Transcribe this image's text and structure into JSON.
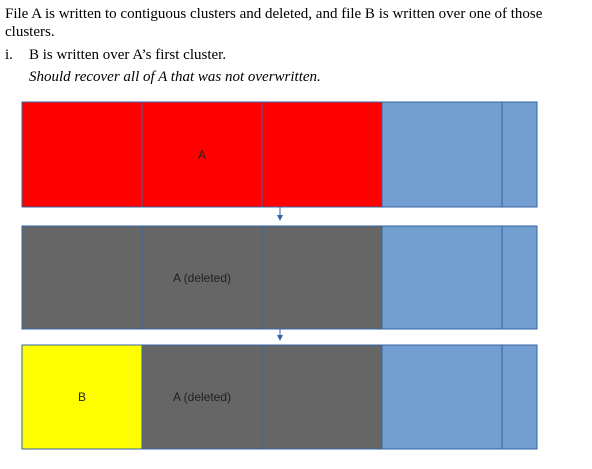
{
  "intro_text": "File A is written to contiguous clusters and deleted, and file B is written over one of those clusters.",
  "item": {
    "number": "i.",
    "text": "B is written over A’s first cluster."
  },
  "note_text": "Should recover all of A that was not overwritten.",
  "colors": {
    "file_a": "#ff0000",
    "deleted": "#666666",
    "file_b": "#ffff00",
    "free": "#729fcf",
    "divider": "#3465a4",
    "arrow": "#3465a4"
  },
  "rows": [
    {
      "label": "A",
      "cells": [
        "file_a",
        "file_a",
        "file_a",
        "free",
        "free"
      ]
    },
    {
      "label": "A (deleted)",
      "cells": [
        "deleted",
        "deleted",
        "deleted",
        "free",
        "free"
      ]
    },
    {
      "label_b": "B",
      "label": "A (deleted)",
      "cells": [
        "file_b",
        "deleted",
        "deleted",
        "free",
        "free"
      ]
    }
  ],
  "icons": {
    "arrow": "down-arrow-icon"
  }
}
